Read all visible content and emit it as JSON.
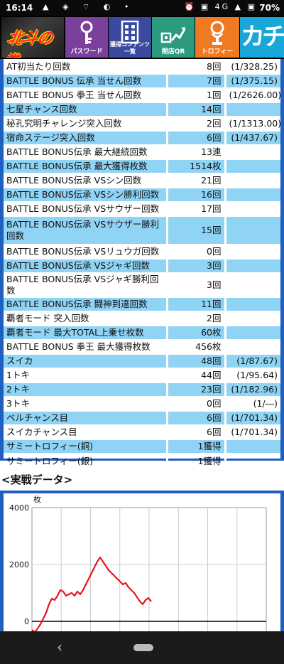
{
  "status": {
    "time": "16:14",
    "network": "4G",
    "battery": "70%"
  },
  "nav": {
    "logo": "北斗の拳",
    "buttons": [
      {
        "label": "パスワード",
        "icon": "key-icon"
      },
      {
        "label": "獲得コンテンツ\n一覧",
        "icon": "document-list-icon"
      },
      {
        "label": "閉店QR",
        "icon": "qr-chart-icon"
      },
      {
        "label": "トロフィー",
        "icon": "trophy-icon"
      }
    ],
    "brand": "カチナビ"
  },
  "stats": [
    {
      "label": "AT初当たり回数",
      "value": "8回",
      "prob": "(1/328.25)",
      "hi": false
    },
    {
      "label": "BATTLE BONUS 伝承 当せん回数",
      "value": "7回",
      "prob": "(1/375.15)",
      "hi": true
    },
    {
      "label": "BATTLE BONUS 拳王 当せん回数",
      "value": "1回",
      "prob": "(1/2626.00)",
      "hi": false
    },
    {
      "label": "七星チャンス回数",
      "value": "14回",
      "prob": "",
      "hi": true
    },
    {
      "label": "秘孔究明チャレンジ突入回数",
      "value": "2回",
      "prob": "(1/1313.00)",
      "hi": false
    },
    {
      "label": "宿命ステージ突入回数",
      "value": "6回",
      "prob": "(1/437.67)",
      "hi": true
    },
    {
      "label": "BATTLE BONUS伝承 最大継続回数",
      "value": "13連",
      "prob": "",
      "hi": false
    },
    {
      "label": "BATTLE BONUS伝承 最大獲得枚数",
      "value": "1514枚",
      "prob": "",
      "hi": true
    },
    {
      "label": "BATTLE BONUS伝承 VSシン回数",
      "value": "21回",
      "prob": "",
      "hi": false
    },
    {
      "label": "BATTLE BONUS伝承 VSシン勝利回数",
      "value": "16回",
      "prob": "",
      "hi": true
    },
    {
      "label": "BATTLE BONUS伝承 VSサウザー回数",
      "value": "17回",
      "prob": "",
      "hi": false
    },
    {
      "label": "BATTLE BONUS伝承 VSサウザー勝利回数",
      "value": "15回",
      "prob": "",
      "hi": true,
      "tall": true
    },
    {
      "label": "BATTLE BONUS伝承 VSリュウガ回数",
      "value": "0回",
      "prob": "",
      "hi": false
    },
    {
      "label": "BATTLE BONUS伝承 VSジャギ回数",
      "value": "3回",
      "prob": "",
      "hi": true
    },
    {
      "label": "BATTLE BONUS伝承 VSジャギ勝利回数",
      "value": "3回",
      "prob": "",
      "hi": false
    },
    {
      "label": "BATTLE BONUS伝承 闘神到達回数",
      "value": "11回",
      "prob": "",
      "hi": true
    },
    {
      "label": "覇者モード 突入回数",
      "value": "2回",
      "prob": "",
      "hi": false
    },
    {
      "label": "覇者モード 最大TOTAL上乗せ枚数",
      "value": "60枚",
      "prob": "",
      "hi": true
    },
    {
      "label": "BATTLE BONUS 拳王 最大獲得枚数",
      "value": "456枚",
      "prob": "",
      "hi": false
    },
    {
      "label": "スイカ",
      "value": "48回",
      "prob": "(1/87.67)",
      "hi": true
    },
    {
      "label": "1トキ",
      "value": "44回",
      "prob": "(1/95.64)",
      "hi": false
    },
    {
      "label": "2トキ",
      "value": "23回",
      "prob": "(1/182.96)",
      "hi": true
    },
    {
      "label": "3トキ",
      "value": "0回",
      "prob": "(1/―)",
      "hi": false
    },
    {
      "label": "ベルチャンス目",
      "value": "6回",
      "prob": "(1/701.34)",
      "hi": true
    },
    {
      "label": "スイカチャンス目",
      "value": "6回",
      "prob": "(1/701.34)",
      "hi": false
    },
    {
      "label": "サミートロフィー(銅)",
      "value": "1獲得",
      "prob": "",
      "hi": true
    },
    {
      "label": "サミートロフィー(銀)",
      "value": "1獲得",
      "prob": "",
      "hi": false
    }
  ],
  "section_title": "<実戦データ>",
  "chart_data": {
    "type": "line",
    "ylabel": "枚",
    "y_ticks": [
      "4000",
      "2000",
      "0"
    ],
    "ylim": [
      -400,
      4000
    ],
    "grid": true,
    "line_color": "#e8141c",
    "x": [
      0,
      4,
      8,
      12,
      16,
      20,
      24,
      28,
      32,
      36,
      40,
      44,
      48,
      52,
      56,
      60,
      64,
      68,
      72,
      76,
      80,
      84,
      88,
      92,
      96,
      100,
      104,
      108,
      112,
      116,
      120,
      124,
      128,
      132,
      136,
      140,
      144,
      148,
      152,
      156,
      160,
      164,
      168
    ],
    "y": [
      -300,
      -380,
      -250,
      -100,
      100,
      300,
      600,
      800,
      750,
      900,
      1100,
      1050,
      900,
      950,
      1000,
      900,
      1050,
      950,
      1100,
      1300,
      1500,
      1700,
      1900,
      2100,
      2250,
      2100,
      1950,
      1800,
      1700,
      1600,
      1500,
      1400,
      1300,
      1350,
      1200,
      1100,
      1000,
      850,
      700,
      600,
      750,
      820,
      700
    ]
  }
}
